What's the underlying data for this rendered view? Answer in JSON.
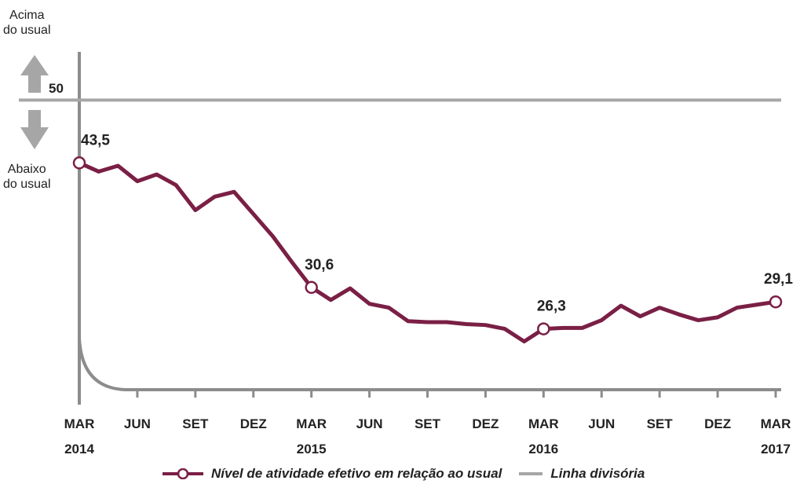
{
  "chart_data": {
    "type": "line",
    "categories": [
      "MAR 2014",
      null,
      null,
      "JUN",
      null,
      null,
      "SET",
      null,
      null,
      "DEZ",
      null,
      null,
      "MAR 2015",
      null,
      null,
      "JUN",
      null,
      null,
      "SET",
      null,
      null,
      "DEZ",
      null,
      null,
      "MAR 2016",
      null,
      null,
      "JUN",
      null,
      null,
      "SET",
      null,
      null,
      "DEZ",
      null,
      null,
      "MAR 2017"
    ],
    "series": [
      {
        "name": "Nível de atividade efetivo em relação ao usual",
        "color": "#7a1f45",
        "values": [
          43.5,
          42.6,
          43.2,
          41.6,
          42.3,
          41.2,
          38.6,
          40.0,
          40.5,
          38.2,
          35.9,
          33.2,
          30.6,
          29.3,
          30.5,
          28.9,
          28.5,
          27.1,
          27.0,
          27.0,
          26.8,
          26.7,
          26.3,
          25.0,
          26.3,
          26.4,
          26.4,
          27.2,
          28.7,
          27.6,
          28.5,
          27.8,
          27.2,
          27.5,
          28.5,
          28.8,
          29.1
        ],
        "value_labels": [
          "43,5",
          null,
          null,
          null,
          null,
          null,
          null,
          null,
          null,
          null,
          null,
          null,
          "30,6",
          null,
          null,
          null,
          null,
          null,
          null,
          null,
          null,
          null,
          null,
          null,
          "26,3",
          null,
          null,
          null,
          null,
          null,
          null,
          null,
          null,
          null,
          null,
          null,
          "29,1"
        ]
      }
    ],
    "reference_line": {
      "name": "Linha divisória",
      "color": "#a6a6a6"
    },
    "ylim": [
      20,
      55
    ],
    "yticks": [
      50
    ],
    "annotations": [
      [
        "Acima",
        "do usual"
      ],
      [
        "Abaixo",
        "do usual"
      ]
    ]
  }
}
